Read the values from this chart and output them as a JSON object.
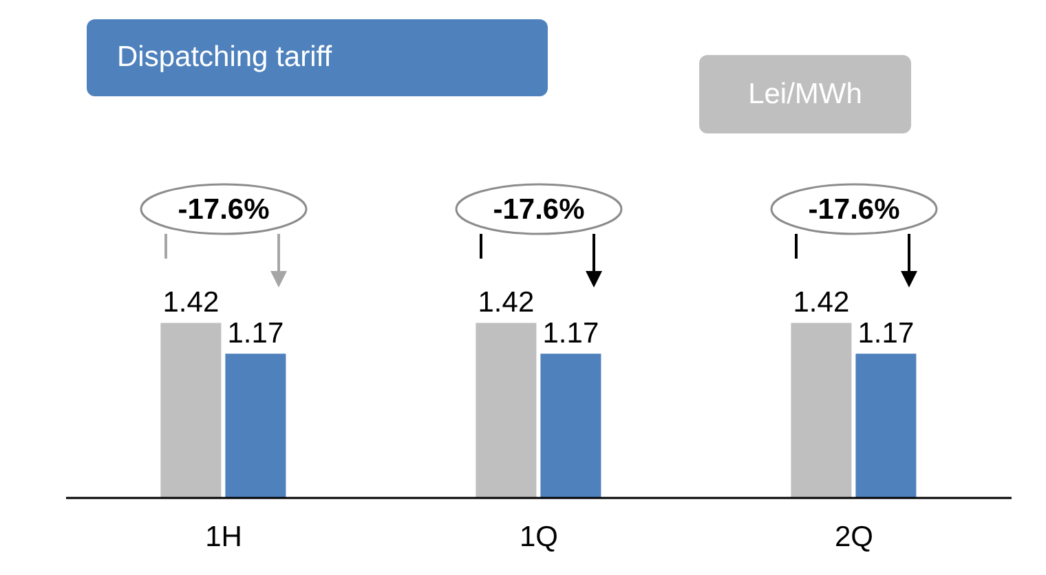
{
  "chart_data": {
    "type": "bar",
    "title": "Dispatching tariff",
    "subtitle": "Lei/MWh",
    "categories": [
      "1H",
      "1Q",
      "2Q"
    ],
    "series": [
      {
        "color": "#bfbfbf",
        "values": [
          1.42,
          1.42,
          1.42
        ]
      },
      {
        "color": "#4f81bd",
        "values": [
          1.17,
          1.17,
          1.17
        ]
      }
    ],
    "data_labels": true,
    "legend": false,
    "grid": false,
    "annotations": [
      "-17.6%",
      "-17.6%",
      "-17.6%"
    ]
  }
}
